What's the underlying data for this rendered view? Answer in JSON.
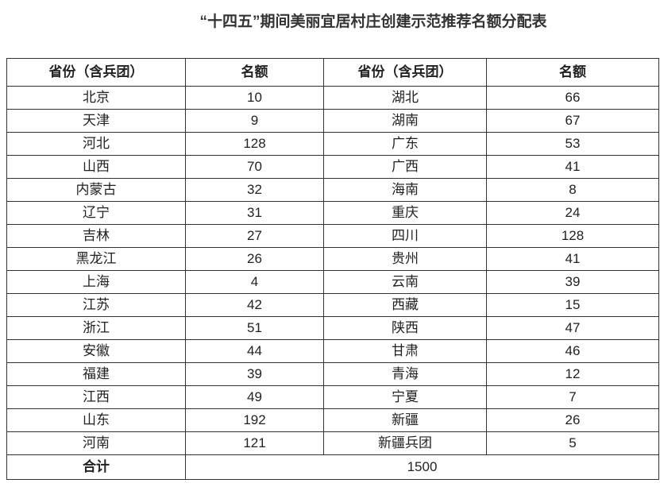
{
  "title": "“十四五”期间美丽宜居村庄创建示范推荐名额分配表",
  "table": {
    "header": [
      "省份（含兵团）",
      "名额",
      "省份（含兵团）",
      "名额"
    ],
    "rows": [
      [
        "北京",
        10,
        "湖北",
        66
      ],
      [
        "天津",
        9,
        "湖南",
        67
      ],
      [
        "河北",
        128,
        "广东",
        53
      ],
      [
        "山西",
        70,
        "广西",
        41
      ],
      [
        "内蒙古",
        32,
        "海南",
        8
      ],
      [
        "辽宁",
        31,
        "重庆",
        24
      ],
      [
        "吉林",
        27,
        "四川",
        128
      ],
      [
        "黑龙江",
        26,
        "贵州",
        41
      ],
      [
        "上海",
        4,
        "云南",
        39
      ],
      [
        "江苏",
        42,
        "西藏",
        15
      ],
      [
        "浙江",
        51,
        "陕西",
        47
      ],
      [
        "安徽",
        44,
        "甘肃",
        46
      ],
      [
        "福建",
        39,
        "青海",
        12
      ],
      [
        "江西",
        49,
        "宁夏",
        7
      ],
      [
        "山东",
        192,
        "新疆",
        26
      ],
      [
        "河南",
        121,
        "新疆兵团",
        5
      ]
    ],
    "total": {
      "label": "合计",
      "value": 1500
    }
  }
}
